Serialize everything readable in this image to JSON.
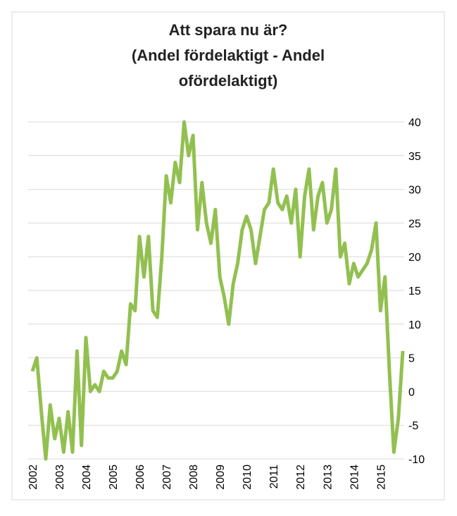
{
  "chart_data": {
    "type": "line",
    "title": [
      "Att spara nu är?",
      "(Andel fördelaktigt - Andel",
      "ofördelaktigt)"
    ],
    "categories": [
      "2002",
      null,
      null,
      null,
      null,
      null,
      "2003",
      null,
      null,
      null,
      null,
      null,
      "2004",
      null,
      null,
      null,
      null,
      null,
      "2005",
      null,
      null,
      null,
      null,
      null,
      "2006",
      null,
      null,
      null,
      null,
      null,
      "2007",
      null,
      null,
      null,
      null,
      null,
      "2008",
      null,
      null,
      null,
      null,
      null,
      "2009",
      null,
      null,
      null,
      null,
      null,
      "2010",
      null,
      null,
      null,
      null,
      null,
      "2011",
      null,
      null,
      null,
      null,
      null,
      "2012",
      null,
      null,
      null,
      null,
      null,
      "2013",
      null,
      null,
      null,
      null,
      null,
      "2014",
      null,
      null,
      null,
      null,
      null,
      "2015",
      null,
      null,
      null,
      null,
      null
    ],
    "series": [
      {
        "color": "#92c050",
        "values": [
          3,
          5,
          -3,
          -10,
          -2,
          -7,
          -4,
          -9,
          -3,
          -9,
          6,
          -8,
          8,
          0,
          1,
          0,
          3,
          2,
          2,
          3,
          6,
          4,
          13,
          12,
          23,
          17,
          23,
          12,
          11,
          20,
          32,
          28,
          34,
          31,
          40,
          35,
          38,
          24,
          31,
          25,
          22,
          27,
          17,
          14,
          10,
          16,
          19,
          24,
          26,
          24,
          19,
          23,
          27,
          28,
          33,
          28,
          27,
          29,
          25,
          30,
          20,
          29,
          33,
          24,
          29,
          31,
          25,
          27,
          33,
          20,
          22,
          16,
          19,
          17,
          18,
          19,
          21,
          25,
          12,
          17,
          3,
          -9,
          -4,
          6
        ]
      }
    ],
    "ylim": [
      -10,
      40
    ],
    "yticks": [
      -10,
      -5,
      0,
      5,
      10,
      15,
      20,
      25,
      30,
      35,
      40
    ],
    "grid": true
  }
}
